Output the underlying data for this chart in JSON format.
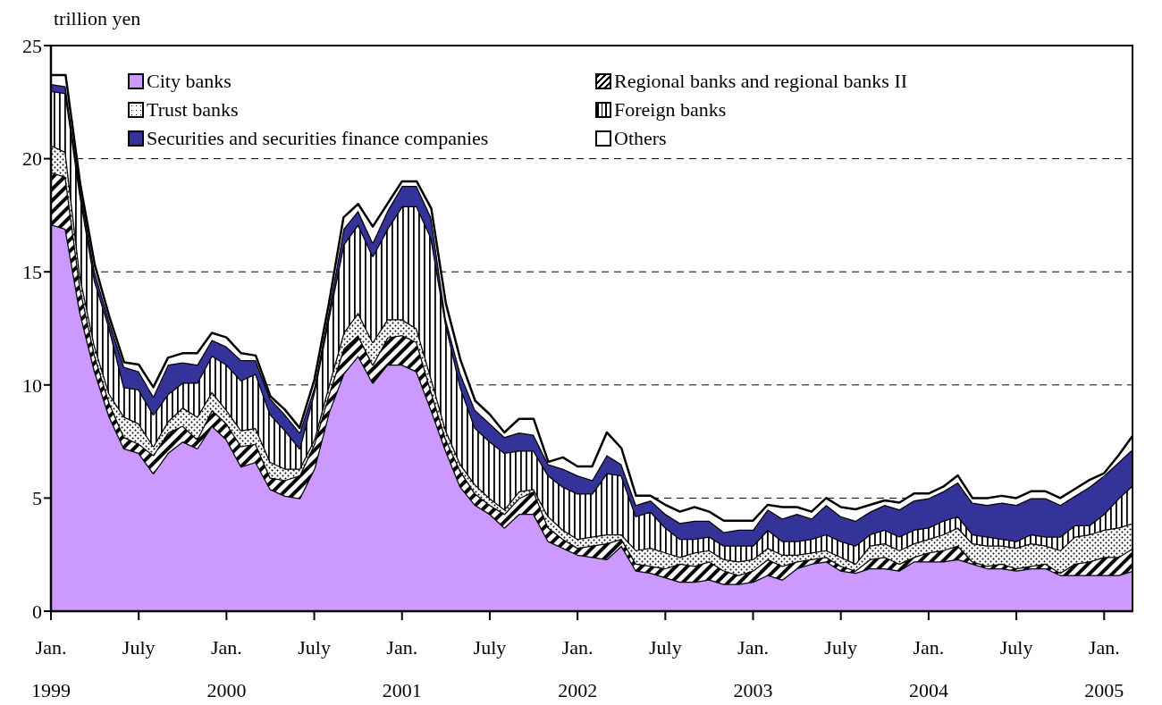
{
  "chart_data": {
    "type": "area",
    "stacked": true,
    "ylabel": "trillion yen",
    "legend": "top",
    "grid": "y",
    "x": [
      "1999-01",
      "1999-02",
      "1999-03",
      "1999-04",
      "1999-05",
      "1999-06",
      "1999-07",
      "1999-08",
      "1999-09",
      "1999-10",
      "1999-11",
      "1999-12",
      "2000-01",
      "2000-02",
      "2000-03",
      "2000-04",
      "2000-05",
      "2000-06",
      "2000-07",
      "2000-08",
      "2000-09",
      "2000-10",
      "2000-11",
      "2000-12",
      "2001-01",
      "2001-02",
      "2001-03",
      "2001-04",
      "2001-05",
      "2001-06",
      "2001-07",
      "2001-08",
      "2001-09",
      "2001-10",
      "2001-11",
      "2001-12",
      "2002-01",
      "2002-02",
      "2002-03",
      "2002-04",
      "2002-05",
      "2002-06",
      "2002-07",
      "2002-08",
      "2002-09",
      "2002-10",
      "2002-11",
      "2002-12",
      "2003-01",
      "2003-02",
      "2003-03",
      "2003-04",
      "2003-05",
      "2003-06",
      "2003-07",
      "2003-08",
      "2003-09",
      "2003-10",
      "2003-11",
      "2003-12",
      "2004-01",
      "2004-02",
      "2004-03",
      "2004-04",
      "2004-05",
      "2004-06",
      "2004-07",
      "2004-08",
      "2004-09",
      "2004-10",
      "2004-11",
      "2004-12",
      "2005-01",
      "2005-02",
      "2005-03"
    ],
    "xlim": [
      "1999-01",
      "2005-03"
    ],
    "xticks": [
      {
        "value": "1999-01",
        "label": "Jan.\n1999"
      },
      {
        "value": "1999-07",
        "label": "July"
      },
      {
        "value": "2000-01",
        "label": "Jan.\n2000"
      },
      {
        "value": "2000-07",
        "label": "July"
      },
      {
        "value": "2001-01",
        "label": "Jan.\n2001"
      },
      {
        "value": "2001-07",
        "label": "July"
      },
      {
        "value": "2002-01",
        "label": "Jan.\n2002"
      },
      {
        "value": "2002-07",
        "label": "July"
      },
      {
        "value": "2003-01",
        "label": "Jan.\n2003"
      },
      {
        "value": "2003-07",
        "label": "July"
      },
      {
        "value": "2004-01",
        "label": "Jan.\n2004"
      },
      {
        "value": "2004-07",
        "label": "July"
      },
      {
        "value": "2005-01",
        "label": "Jan.\n2005"
      }
    ],
    "ylim": [
      0,
      25
    ],
    "yticks": [
      0,
      5,
      10,
      15,
      20,
      25
    ],
    "series": [
      {
        "name": "City banks",
        "color": "#cc99ff",
        "values": [
          17.1,
          16.9,
          13.2,
          10.6,
          8.6,
          7.2,
          7.0,
          6.1,
          7.0,
          7.5,
          7.2,
          8.2,
          7.6,
          6.4,
          6.6,
          5.4,
          5.1,
          5.0,
          6.3,
          8.8,
          10.5,
          11.3,
          10.1,
          10.9,
          10.9,
          10.6,
          8.9,
          7.1,
          5.5,
          4.7,
          4.3,
          3.7,
          4.3,
          4.3,
          3.1,
          2.8,
          2.5,
          2.4,
          2.3,
          2.9,
          1.8,
          1.7,
          1.5,
          1.3,
          1.3,
          1.4,
          1.2,
          1.2,
          1.3,
          1.6,
          1.4,
          1.9,
          2.1,
          2.2,
          1.8,
          1.7,
          1.9,
          1.9,
          1.8,
          2.2,
          2.2,
          2.2,
          2.3,
          2.1,
          1.9,
          1.9,
          1.8,
          1.9,
          1.9,
          1.6,
          1.6,
          1.6,
          1.6,
          1.6,
          1.8
        ]
      },
      {
        "name": "Regional banks and regional banks II",
        "color": "#ffffff",
        "values": [
          2.3,
          2.3,
          1.1,
          0.7,
          0.6,
          0.5,
          0.4,
          0.8,
          0.9,
          0.7,
          0.4,
          0.7,
          0.7,
          0.9,
          0.8,
          0.5,
          0.7,
          1.0,
          1.1,
          0.8,
          1.1,
          0.9,
          0.8,
          1.2,
          1.3,
          1.3,
          0.8,
          0.5,
          0.7,
          0.5,
          0.4,
          0.6,
          0.7,
          1.0,
          0.6,
          0.4,
          0.3,
          0.5,
          0.7,
          0.3,
          0.3,
          0.3,
          0.4,
          0.8,
          0.7,
          0.8,
          0.6,
          0.4,
          0.5,
          0.7,
          0.6,
          0.3,
          0.2,
          0.2,
          0.2,
          0.1,
          0.4,
          0.5,
          0.3,
          0.2,
          0.4,
          0.5,
          0.6,
          0.1,
          0.1,
          0.2,
          0.1,
          0.1,
          0.2,
          0.1,
          0.5,
          0.6,
          0.8,
          0.8,
          1.0
        ]
      },
      {
        "name": "Trust banks",
        "color": "#ffffff",
        "values": [
          1.2,
          1.1,
          0.5,
          0.4,
          0.4,
          0.9,
          0.9,
          0.4,
          0.5,
          0.8,
          1.0,
          0.8,
          0.6,
          0.7,
          0.7,
          0.7,
          0.5,
          0.3,
          0.2,
          0.4,
          0.7,
          1.0,
          1.0,
          0.8,
          0.7,
          0.6,
          0.6,
          0.4,
          0.3,
          0.4,
          0.3,
          0.2,
          0.3,
          0.1,
          0.5,
          0.4,
          0.4,
          0.4,
          0.4,
          0.2,
          0.6,
          0.8,
          0.7,
          0.3,
          0.6,
          0.5,
          0.5,
          0.6,
          0.5,
          0.5,
          0.5,
          0.3,
          0.3,
          0.3,
          0.4,
          0.3,
          0.6,
          0.6,
          0.6,
          0.6,
          0.6,
          0.7,
          0.8,
          0.8,
          0.9,
          0.8,
          0.9,
          1.0,
          0.8,
          1.0,
          1.2,
          1.2,
          1.2,
          1.3,
          1.1
        ]
      },
      {
        "name": "Foreign banks",
        "color": "#ffffff",
        "values": [
          2.4,
          2.6,
          3.6,
          2.9,
          2.9,
          1.3,
          1.5,
          1.4,
          1.2,
          1.1,
          1.5,
          1.6,
          2.0,
          2.2,
          2.4,
          2.1,
          1.7,
          0.9,
          2.1,
          3.0,
          3.9,
          3.9,
          3.8,
          4.0,
          5.0,
          5.4,
          6.2,
          4.7,
          3.4,
          2.5,
          2.5,
          2.5,
          1.8,
          1.7,
          1.8,
          1.9,
          2.0,
          1.9,
          2.7,
          2.6,
          1.5,
          1.6,
          1.1,
          0.8,
          0.6,
          0.6,
          0.6,
          0.7,
          0.6,
          0.8,
          0.6,
          0.6,
          0.6,
          0.7,
          0.7,
          0.8,
          0.5,
          0.6,
          0.6,
          0.6,
          0.5,
          0.6,
          0.5,
          0.4,
          0.4,
          0.3,
          0.3,
          0.4,
          0.4,
          0.6,
          0.5,
          0.4,
          0.7,
          1.3,
          1.7
        ]
      },
      {
        "name": "Securities and securities finance companies",
        "color": "#333399",
        "values": [
          0.3,
          0.3,
          0.3,
          0.4,
          0.3,
          0.9,
          0.8,
          0.8,
          1.3,
          0.9,
          0.8,
          0.7,
          0.8,
          0.9,
          0.6,
          0.7,
          0.7,
          0.7,
          0.2,
          0.3,
          0.7,
          0.6,
          0.6,
          0.8,
          0.9,
          0.9,
          0.9,
          0.2,
          0.6,
          0.8,
          0.8,
          0.7,
          0.8,
          0.7,
          0.5,
          0.8,
          0.8,
          0.6,
          0.8,
          0.5,
          0.5,
          0.5,
          0.6,
          0.7,
          0.8,
          0.7,
          0.6,
          0.7,
          0.7,
          0.9,
          1.0,
          1.2,
          0.9,
          1.3,
          1.1,
          1.1,
          1.0,
          1.1,
          1.2,
          1.3,
          1.3,
          1.3,
          1.5,
          1.4,
          1.4,
          1.6,
          1.6,
          1.6,
          1.7,
          1.4,
          1.3,
          1.7,
          1.7,
          1.6,
          1.6
        ]
      },
      {
        "name": "Others",
        "color": "#ffffff",
        "values": [
          0.4,
          0.5,
          0.2,
          0.3,
          0.2,
          0.2,
          0.3,
          0.4,
          0.3,
          0.4,
          0.5,
          0.3,
          0.4,
          0.3,
          0.2,
          0.1,
          0.2,
          0.2,
          0.3,
          0.3,
          0.5,
          0.3,
          0.7,
          0.3,
          0.2,
          0.2,
          0.4,
          0.7,
          0.6,
          0.4,
          0.4,
          0.2,
          0.6,
          0.7,
          0.1,
          0.5,
          0.4,
          0.6,
          1.0,
          0.7,
          0.4,
          0.2,
          0.4,
          0.5,
          0.6,
          0.4,
          0.5,
          0.4,
          0.4,
          0.2,
          0.5,
          0.3,
          0.3,
          0.3,
          0.4,
          0.5,
          0.3,
          0.2,
          0.3,
          0.3,
          0.2,
          0.2,
          0.3,
          0.2,
          0.3,
          0.3,
          0.3,
          0.3,
          0.3,
          0.3,
          0.3,
          0.3,
          0.1,
          0.3,
          0.6
        ]
      }
    ]
  }
}
